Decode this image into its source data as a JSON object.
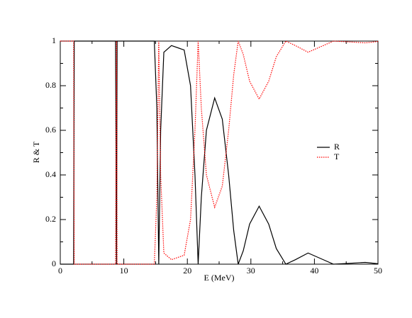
{
  "chart_data": {
    "type": "line",
    "x_label": "E (MeV)",
    "y_label": "R & T",
    "x": [
      0,
      2.1,
      2.2,
      8.7,
      8.85,
      8.95,
      9.1,
      14.8,
      15.2,
      15.5,
      15.8,
      16.3,
      17.5,
      19.5,
      20.5,
      21.2,
      21.7,
      22.2,
      23,
      24.3,
      25.5,
      26.5,
      27.3,
      28,
      28.8,
      29.8,
      31.3,
      32.8,
      34,
      35.5,
      37,
      39,
      41,
      43,
      45,
      48,
      50
    ],
    "series": [
      {
        "name": "R",
        "color": "#000000",
        "dash": false,
        "values": [
          0,
          0,
          1,
          1,
          0,
          1,
          1,
          1,
          0.7,
          0,
          0.6,
          0.95,
          0.98,
          0.96,
          0.8,
          0.4,
          0,
          0.3,
          0.6,
          0.745,
          0.65,
          0.4,
          0.15,
          0,
          0.06,
          0.18,
          0.26,
          0.18,
          0.07,
          0,
          0.02,
          0.05,
          0.025,
          0,
          0.003,
          0.008,
          0.002
        ]
      },
      {
        "name": "T",
        "color": "#ff0000",
        "dash": true,
        "values": [
          1,
          1,
          0,
          0,
          1,
          0,
          0,
          0,
          0.3,
          1,
          0.4,
          0.05,
          0.02,
          0.04,
          0.2,
          0.6,
          1,
          0.7,
          0.4,
          0.255,
          0.35,
          0.6,
          0.85,
          1,
          0.94,
          0.82,
          0.74,
          0.82,
          0.93,
          1,
          0.98,
          0.95,
          0.975,
          1,
          0.997,
          0.992,
          0.998
        ]
      }
    ],
    "xlim": [
      0,
      50
    ],
    "xticks": [
      0,
      10,
      20,
      30,
      40,
      50
    ],
    "ylim": [
      0,
      1
    ],
    "yticks": [
      0,
      0.2,
      0.4,
      0.6,
      0.8,
      1
    ],
    "legend": "right"
  }
}
